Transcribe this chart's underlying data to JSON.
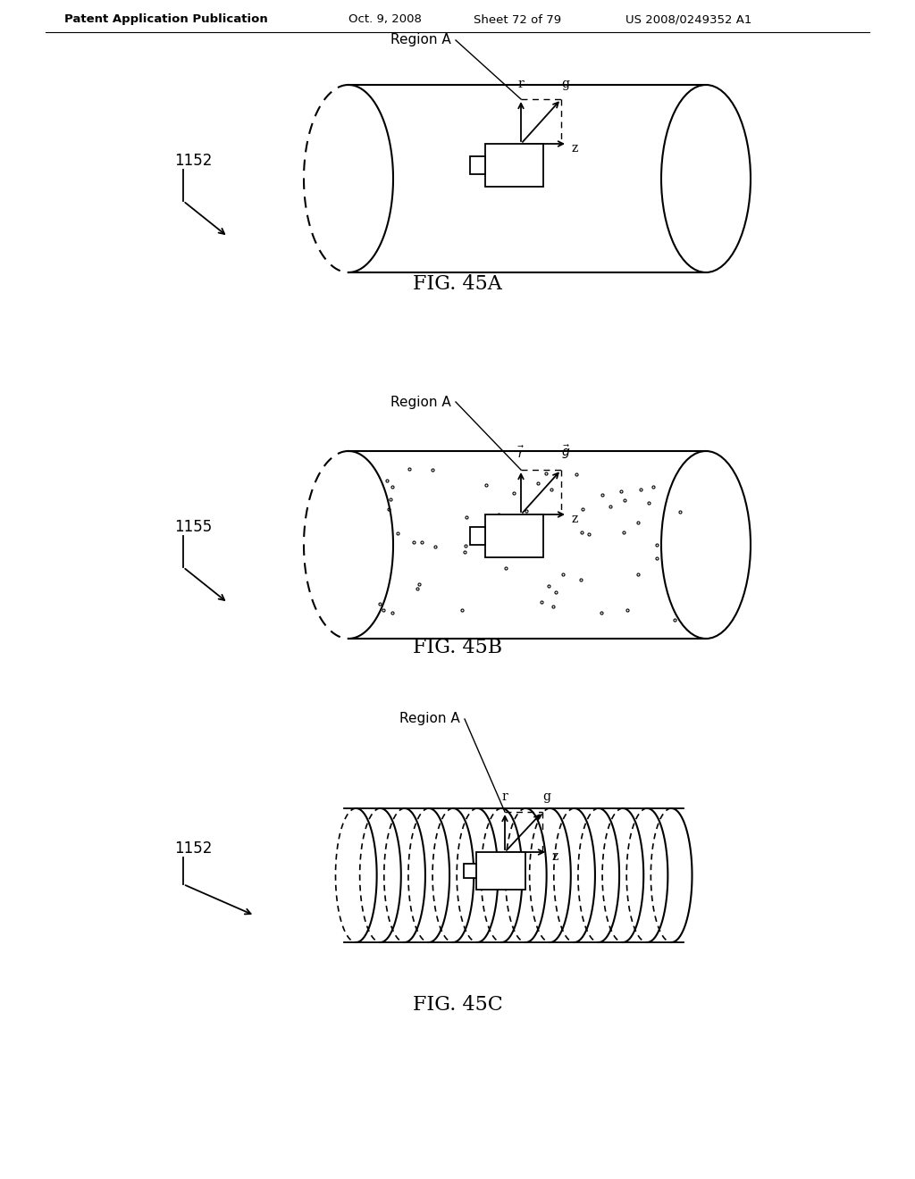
{
  "bg_color": "#ffffff",
  "text_color": "#000000",
  "line_color": "#000000",
  "header_left": "Patent Application Publication",
  "header_date": "Oct. 9, 2008",
  "header_sheet": "Sheet 72 of 79",
  "header_patent": "US 2008/0249352 A1"
}
